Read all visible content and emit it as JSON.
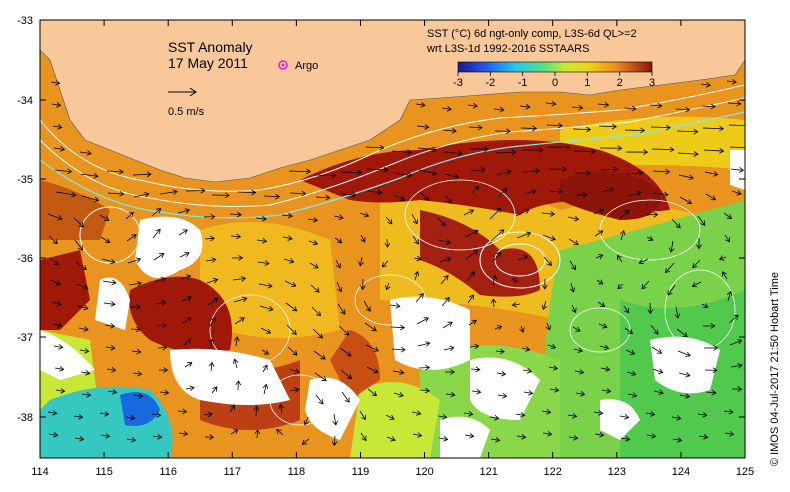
{
  "map": {
    "title": "SST Anomaly",
    "date": "17 May 2011",
    "argo_label": "Argo",
    "scale_label": "0.5 m/s",
    "product_line1": "SST (°C) 6d ngt-only comp, L3S-6d QL>=2",
    "product_line2": "wrt L3S-1d 1992-2016 SSTAARS",
    "credit": "© IMOS 04-Jul-2017 21:50 Hobart Time",
    "x_ticks": [
      "114",
      "115",
      "116",
      "117",
      "118",
      "119",
      "120",
      "121",
      "122",
      "123",
      "124",
      "125"
    ],
    "y_ticks": [
      "-33",
      "-34",
      "-35",
      "-36",
      "-37",
      "-38"
    ],
    "colorbar_ticks": [
      "-3",
      "-2",
      "-1",
      "0",
      "1",
      "2",
      "3"
    ],
    "colors": {
      "land": "#f8c89a",
      "warm": "#a01808",
      "orange": "#e8941e",
      "yellow": "#f0d018",
      "green": "#7ad24a",
      "cyan": "#34c8c0",
      "blue": "#1868e0"
    },
    "icons": [
      "argo-marker-icon",
      "velocity-arrow-icon"
    ]
  }
}
